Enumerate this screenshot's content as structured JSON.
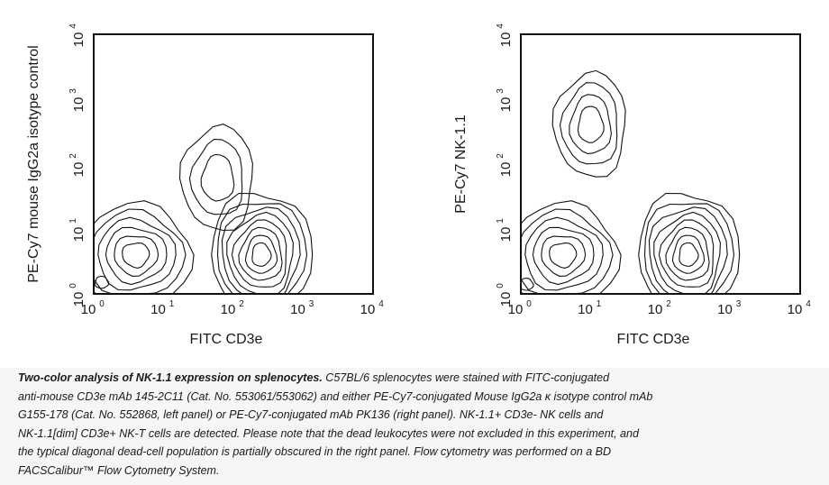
{
  "chart_data": [
    {
      "type": "contour",
      "xlabel": "FITC CD3e",
      "ylabel": "PE-Cy7 mouse IgG2a isotype control",
      "x_scale": "log",
      "y_scale": "log",
      "xlim": [
        1,
        10000
      ],
      "ylim": [
        1,
        10000
      ],
      "x_ticks": [
        "10",
        "10",
        "10",
        "10",
        "10"
      ],
      "x_tick_exponents": [
        "0",
        "1",
        "2",
        "3",
        "4"
      ],
      "y_ticks": [
        "10",
        "10",
        "10",
        "10",
        "10"
      ],
      "y_tick_exponents": [
        "0",
        "1",
        "2",
        "3",
        "4"
      ],
      "populations": [
        {
          "x": 4,
          "y": 4,
          "level_count": 6
        },
        {
          "x": 250,
          "y": 4,
          "level_count": 8
        },
        {
          "x": 60,
          "y": 60,
          "level_count": 3
        },
        {
          "x": 1.3,
          "y": 1.5,
          "level_count": 1
        }
      ],
      "grid": false
    },
    {
      "type": "contour",
      "xlabel": "FITC CD3e",
      "ylabel": "PE-Cy7 NK-1.1",
      "x_scale": "log",
      "y_scale": "log",
      "xlim": [
        1,
        10000
      ],
      "ylim": [
        1,
        10000
      ],
      "x_ticks": [
        "10",
        "10",
        "10",
        "10",
        "10"
      ],
      "x_tick_exponents": [
        "0",
        "1",
        "2",
        "3",
        "4"
      ],
      "y_ticks": [
        "10",
        "10",
        "10",
        "10",
        "10"
      ],
      "y_tick_exponents": [
        "0",
        "1",
        "2",
        "3",
        "4"
      ],
      "populations": [
        {
          "x": 4,
          "y": 4,
          "level_count": 6
        },
        {
          "x": 250,
          "y": 4,
          "level_count": 8
        },
        {
          "x": 10,
          "y": 400,
          "level_count": 4
        },
        {
          "x": 1.2,
          "y": 1.4,
          "level_count": 1
        }
      ],
      "grid": false
    }
  ],
  "caption": {
    "bold_lead": "Two-color analysis of NK-1.1 expression on splenocytes.",
    "line1": " C57BL/6 splenocytes were stained with FITC-conjugated",
    "line2": "anti-mouse CD3e mAb 145-2C11 (Cat. No. 553061/553062) and either PE-Cy7-conjugated Mouse IgG2a κ isotype control mAb",
    "line3": "G155-178 (Cat. No. 552868, left panel) or PE-Cy7-conjugated mAb PK136 (right panel). NK-1.1+ CD3e- NK cells and",
    "line4": "NK-1.1[dim] CD3e+ NK-T cells are detected. Please note that the dead leukocytes were not excluded in this experiment, and",
    "line5": "the typical diagonal dead-cell population is partially obscured in the right panel. Flow cytometry was performed on a BD",
    "line6": "FACSCalibur™ Flow Cytometry System."
  }
}
